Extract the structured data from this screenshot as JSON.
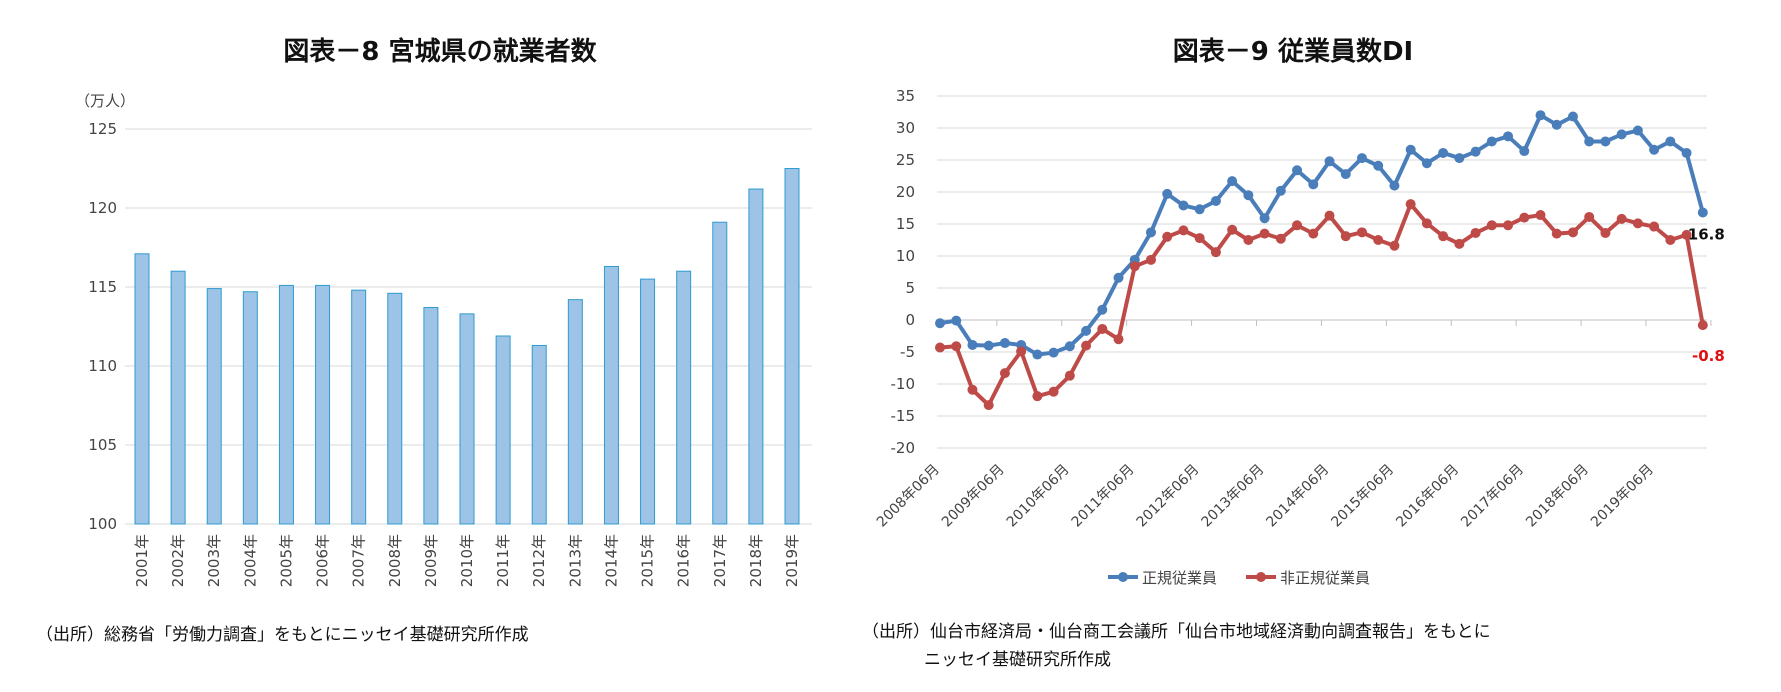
{
  "chart_data": [
    {
      "type": "bar",
      "title": "図表－8  宮城県の就業者数",
      "ylabel": "（万人）",
      "xlabel": "",
      "ylim": [
        100,
        125
      ],
      "yticks": [
        100,
        105,
        110,
        115,
        120,
        125
      ],
      "grid": true,
      "categories": [
        "2001年",
        "2002年",
        "2003年",
        "2004年",
        "2005年",
        "2006年",
        "2007年",
        "2008年",
        "2009年",
        "2010年",
        "2011年",
        "2012年",
        "2013年",
        "2014年",
        "2015年",
        "2016年",
        "2017年",
        "2018年",
        "2019年"
      ],
      "values": [
        117.1,
        116.0,
        114.9,
        114.7,
        115.1,
        115.1,
        114.8,
        114.6,
        113.7,
        113.3,
        111.9,
        111.3,
        114.2,
        116.3,
        115.5,
        116.0,
        119.1,
        121.2,
        122.5
      ],
      "bar_color": "#9dc3e6",
      "bar_edge": "#2e9bd0",
      "source": "（出所）総務省「労働力調査」をもとにニッセイ基礎研究所作成"
    },
    {
      "type": "line",
      "title": "図表－9  従業員数DI",
      "ylim": [
        -20,
        35
      ],
      "yticks": [
        -20,
        -15,
        -10,
        -5,
        0,
        5,
        10,
        15,
        20,
        25,
        30,
        35
      ],
      "grid": true,
      "x_start": "2008年06月",
      "x_step": "quarter",
      "xtick_labels": [
        "2008年06月",
        "2009年06月",
        "2010年06月",
        "2011年06月",
        "2012年06月",
        "2013年06月",
        "2014年06月",
        "2015年06月",
        "2016年06月",
        "2017年06月",
        "2018年06月",
        "2019年06月"
      ],
      "legend_position": "bottom",
      "series": [
        {
          "name": "正規従業員",
          "color": "#4a7ebb",
          "values": [
            -0.5,
            -0.1,
            -3.9,
            -4.0,
            -3.6,
            -3.9,
            -5.4,
            -5.1,
            -4.1,
            -1.7,
            1.6,
            6.6,
            9.4,
            13.7,
            19.7,
            17.9,
            17.3,
            18.6,
            21.7,
            19.5,
            15.9,
            20.2,
            23.4,
            21.2,
            24.8,
            22.8,
            25.3,
            24.1,
            21.0,
            26.6,
            24.5,
            26.1,
            25.3,
            26.3,
            27.9,
            28.7,
            26.4,
            32.0,
            30.5,
            31.8,
            27.9,
            27.9,
            29.0,
            29.6,
            26.6,
            27.9,
            26.1,
            16.8
          ],
          "last_label": "16.8",
          "label_color": "#111111"
        },
        {
          "name": "非正規従業員",
          "color": "#be4b48",
          "values": [
            -4.3,
            -4.1,
            -10.9,
            -13.3,
            -8.3,
            -4.9,
            -11.9,
            -11.2,
            -8.7,
            -4.0,
            -1.4,
            -3.0,
            8.4,
            9.4,
            13.0,
            14.0,
            12.8,
            10.6,
            14.1,
            12.5,
            13.5,
            12.7,
            14.8,
            13.5,
            16.3,
            13.1,
            13.7,
            12.5,
            11.6,
            18.1,
            15.1,
            13.1,
            11.9,
            13.6,
            14.8,
            14.8,
            16.0,
            16.4,
            13.5,
            13.7,
            16.1,
            13.6,
            15.8,
            15.1,
            14.6,
            12.5,
            13.3,
            -0.8
          ],
          "last_label": "-0.8",
          "label_color": "#e01010"
        }
      ],
      "source_line1": "（出所）仙台市経済局・仙台商工会議所「仙台市地域経済動向調査報告」をもとに",
      "source_line2": "ニッセイ基礎研究所作成"
    }
  ]
}
